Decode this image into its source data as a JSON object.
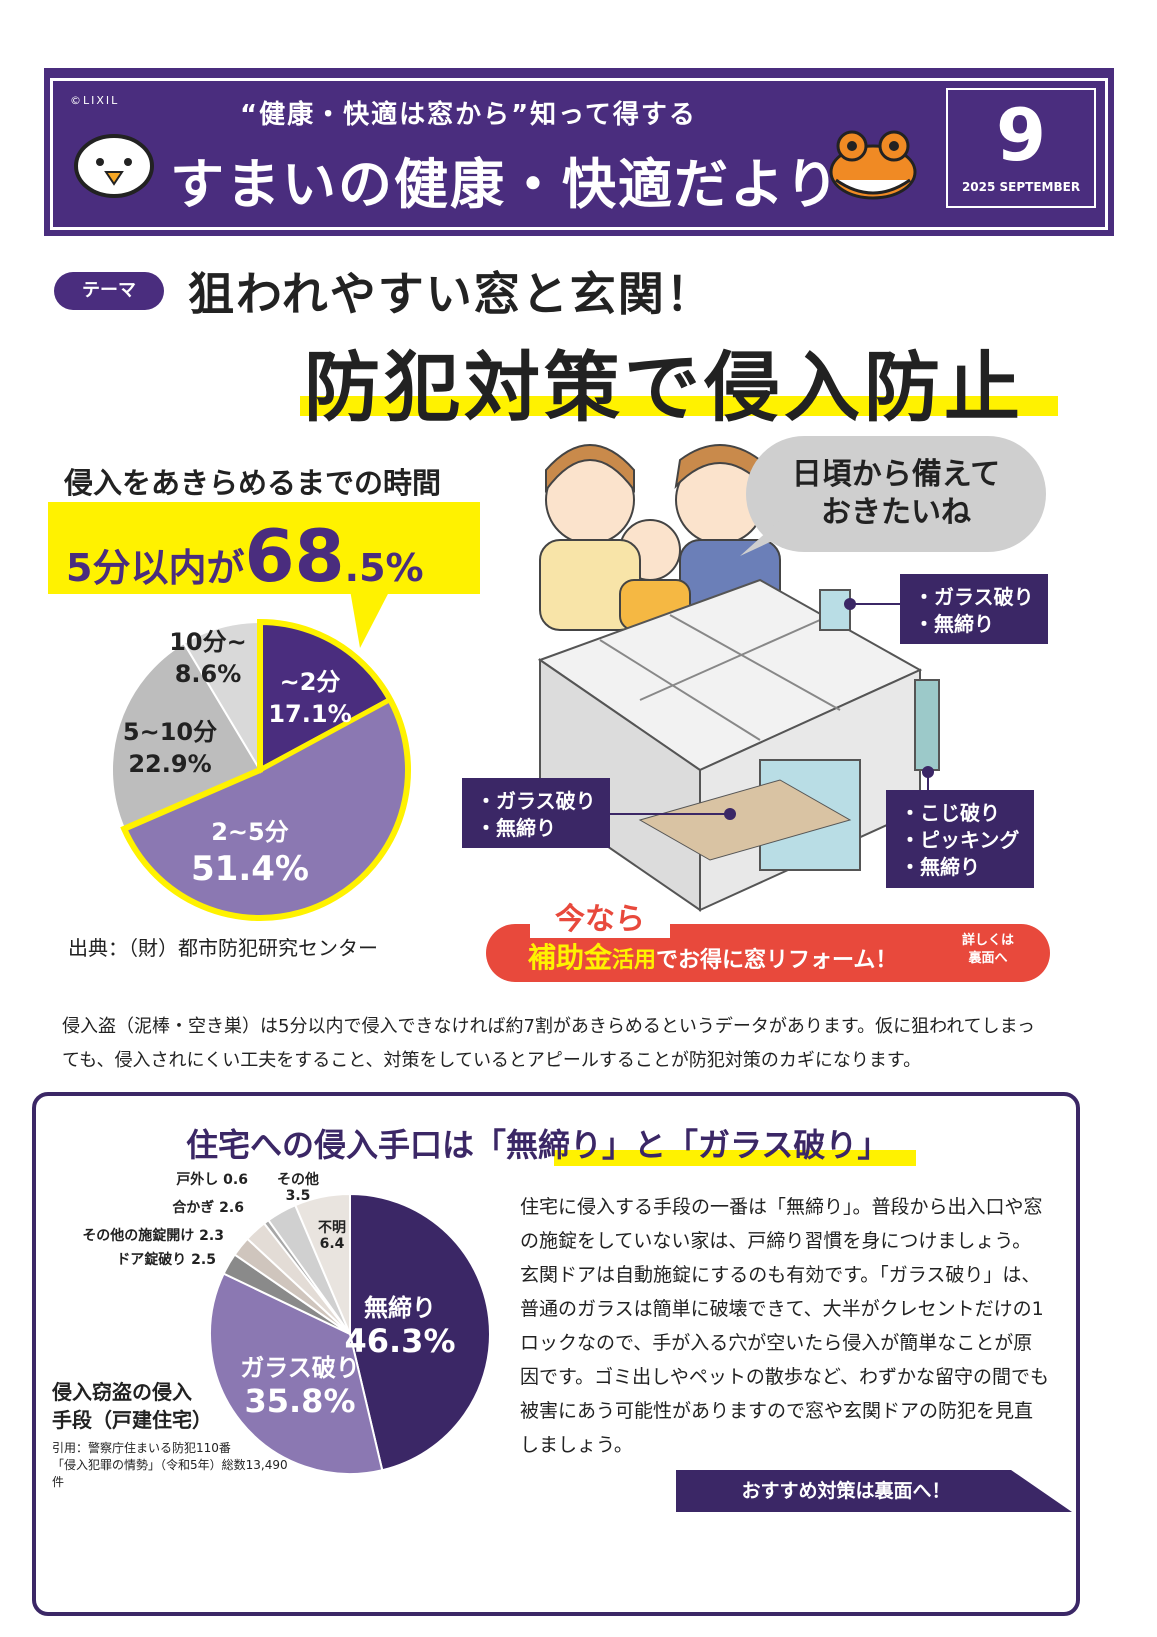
{
  "header": {
    "copyright": "©LIXIL",
    "tagline": "“健康・快適は窓から”知って得する",
    "title": "すまいの健康・快適だより",
    "issue_number": "9",
    "issue_date": "2025 SEPTEMBER"
  },
  "theme": {
    "badge": "テーマ",
    "headline1": "狙われやすい窓と玄関！",
    "headline2": "防犯対策で侵入防止"
  },
  "stat": {
    "label": "侵入をあきらめるまでの時間",
    "prefix": "5分以内が",
    "value": "68",
    "suffix": ".5%",
    "source": "出典：（財）都市防犯研究センター"
  },
  "chart_data": [
    {
      "type": "pie",
      "title": "侵入をあきらめるまでの時間",
      "slices": [
        {
          "label": "~2分",
          "value": 17.1,
          "value_label": "17.1%",
          "color": "#4a2d7e"
        },
        {
          "label": "2~5分",
          "value": 51.4,
          "value_label": "51.4%",
          "color": "#8b78b2"
        },
        {
          "label": "5~10分",
          "value": 22.9,
          "value_label": "22.9%",
          "color": "#bdbdbd"
        },
        {
          "label": "10分~",
          "value": 8.6,
          "value_label": "8.6%",
          "color": "#d9d9d9"
        }
      ]
    },
    {
      "type": "pie",
      "title": "侵入窃盗の侵入手段（戸建住宅）",
      "slices": [
        {
          "label": "無締り",
          "value": 46.3,
          "value_label": "46.3%",
          "color": "#3b2766"
        },
        {
          "label": "ガラス破り",
          "value": 35.8,
          "value_label": "35.8%",
          "color": "#8b78b2"
        },
        {
          "label": "ドア錠破り",
          "value": 2.5,
          "value_label": "2.5",
          "color": "#8a8a8a"
        },
        {
          "label": "その他の施錠開け",
          "value": 2.3,
          "value_label": "2.3",
          "color": "#cfc5bd"
        },
        {
          "label": "合かぎ",
          "value": 2.6,
          "value_label": "2.6",
          "color": "#e3dcd6"
        },
        {
          "label": "戸外し",
          "value": 0.6,
          "value_label": "0.6",
          "color": "#a7a7a7"
        },
        {
          "label": "その他",
          "value": 3.5,
          "value_label": "3.5",
          "color": "#d0d0d0"
        },
        {
          "label": "不明",
          "value": 6.4,
          "value_label": "6.4",
          "color": "#e9e4df"
        }
      ]
    }
  ],
  "illustration": {
    "speech": [
      "日頃から備えて",
      "おきたいね"
    ],
    "callout_window": [
      "・ガラス破り",
      "・無締り"
    ],
    "callout_patio": [
      "・ガラス破り",
      "・無締り"
    ],
    "callout_door": [
      "・こじ破り",
      "・ピッキング",
      "・無締り"
    ]
  },
  "banner": {
    "top": "今なら",
    "main_yellow": "補助金",
    "main_small": "活用",
    "main_rest": "でお得に窓リフォーム！",
    "side": [
      "詳しくは",
      "裏面へ"
    ]
  },
  "paragraph": "侵入盗（泥棒・空き巣）は5分以内で侵入できなければ約7割があきらめるというデータがあります。仮に狙われてしまっても、侵入されにくい工夫をすること、対策をしているとアピールすることが防犯対策のカギになります。",
  "section2": {
    "title": "住宅への侵入手口は「無締り」と「ガラス破り」",
    "body": "住宅に侵入する手段の一番は「無締り」。普段から出入口や窓の施錠をしていない家は、戸締り習慣を身につけましょう。玄関ドアは自動施錠にするのも有効です。「ガラス破り」は、普通のガラスは簡単に破壊できて、大半がクレセントだけの1ロックなので、手が入る穴が空いたら侵入が簡単なことが原因です。ゴミ出しやペットの散歩など、わずかな留守の間でも被害にあう可能性がありますので窓や玄関ドアの防犯を見直しましょう。",
    "pie_title": [
      "侵入窃盗の侵入",
      "手段（戸建住宅）"
    ],
    "pie_source": [
      "引用：警察庁住まいる防犯110番",
      "「侵入犯罪の情勢」（令和5年）総数13,490件"
    ],
    "cta": "おすすめ対策は裏面へ！"
  }
}
